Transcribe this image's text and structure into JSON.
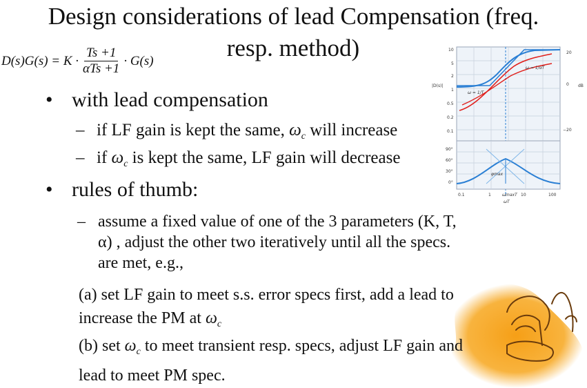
{
  "slide": {
    "title_line1": "Design considerations of lead Compensation (freq.",
    "title_line2": "resp. method)",
    "formula": {
      "lhs": "D(s)G(s) = K ·",
      "numerator": "Ts +1",
      "denominator": "αTs +1",
      "rhs": "· G(s)"
    },
    "bullet1": "with lead compensation",
    "sub1_text": "if LF gain is kept the same, ",
    "sub1_omega": "ω",
    "sub1_c": "c",
    "sub1_tail": " will increase",
    "sub2_lead": "if ",
    "sub2_omega": "ω",
    "sub2_c": "c",
    "sub2_tail": " is kept the same, LF gain will decrease",
    "bullet2": "rules of thumb:",
    "rule_line1": "assume a fixed value of one of the 3 parameters (K, T,",
    "rule_line2": "α) , adjust the other two iteratively until all the specs.",
    "rule_line3": "are met, e.g.,",
    "a_line1": "(a) set LF gain to meet s.s. error specs first, add a lead to",
    "a_line2": "increase the PM at ",
    "a_omega": "ω",
    "a_c": "c",
    "b_line1_pre": "(b) set ",
    "b_omega": "ω",
    "b_c": "c",
    "b_line1_post": " to meet transient resp. specs, adjust LF gain and",
    "b_line2": "lead to meet PM spec."
  },
  "bode": {
    "mag_label": "|D(s)|",
    "mag_ticks": [
      "10",
      "5",
      "2",
      "1",
      "0.5",
      "0.2",
      "0.1"
    ],
    "db_ticks": [
      "20",
      "0",
      "−20"
    ],
    "db_label": "dB",
    "freq_ticks": [
      "0.1",
      "1",
      "10",
      "100"
    ],
    "corner1": "ω = 1/T",
    "corner2": "ω = 1/αT",
    "wmax_label": "ωmaxT",
    "wt_label": "ωT",
    "phase_ticks": [
      "90°",
      "60°",
      "30°",
      "0°"
    ],
    "phi_label": "φmax"
  },
  "colors": {
    "text": "#111111",
    "grid": "#9aa6b8",
    "blue_curve": "#2a7fd4",
    "red_curve": "#e0201c",
    "highlight": "#f7a61c"
  }
}
